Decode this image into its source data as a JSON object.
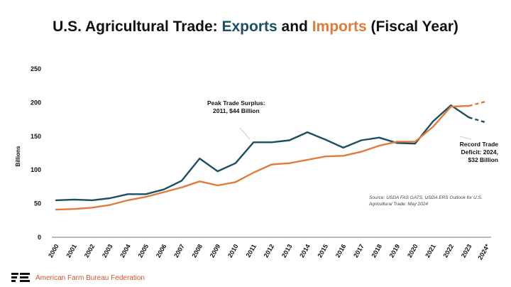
{
  "title": {
    "part1": "U.S. Agricultural Trade: ",
    "exports_word": "Exports",
    "and_word": " and ",
    "imports_word": "Imports",
    "part2": " (Fiscal Year)"
  },
  "colors": {
    "exports": "#1b4f63",
    "imports": "#e07b39",
    "axis_text": "#111111"
  },
  "chart_data": {
    "type": "line",
    "ylabel": "Billions",
    "ylim": [
      0,
      250
    ],
    "yticks": [
      0,
      50,
      100,
      150,
      200,
      250
    ],
    "grid": false,
    "categories": [
      "2000",
      "2001",
      "2002",
      "2003",
      "2004",
      "2005",
      "2006",
      "2007",
      "2008",
      "2009",
      "2010",
      "2011",
      "2012",
      "2013",
      "2014",
      "2015",
      "2016",
      "2017",
      "2018",
      "2019",
      "2020",
      "2021",
      "2022",
      "2023",
      "2024*"
    ],
    "series": [
      {
        "key": "exports",
        "values": [
          55,
          56,
          55,
          58,
          64,
          64,
          71,
          84,
          117,
          98,
          110,
          141,
          141,
          144,
          156,
          145,
          133,
          144,
          148,
          140,
          139,
          172,
          196,
          178,
          170
        ],
        "projected_from_index": 23
      },
      {
        "key": "imports",
        "values": [
          41,
          42,
          44,
          48,
          55,
          60,
          67,
          74,
          83,
          77,
          82,
          96,
          108,
          110,
          115,
          120,
          121,
          127,
          136,
          142,
          142,
          164,
          194,
          195,
          202
        ],
        "projected_from_index": 23
      }
    ],
    "annotations": [
      {
        "key": "peak",
        "line1": "Peak Trade Surplus:",
        "line2": "2011, $44 Billion"
      },
      {
        "key": "deficit",
        "line1": "Record Trade",
        "line2": "Deficit: 2024,",
        "line3": "$32 Billion"
      }
    ]
  },
  "source_note": "Source: USDA FAS GATS, USDA ERS Outlook for U.S. Agricultural Trade: May 2024",
  "footer": {
    "org": "American Farm Bureau Federation",
    "logo": "afbf-logo"
  }
}
